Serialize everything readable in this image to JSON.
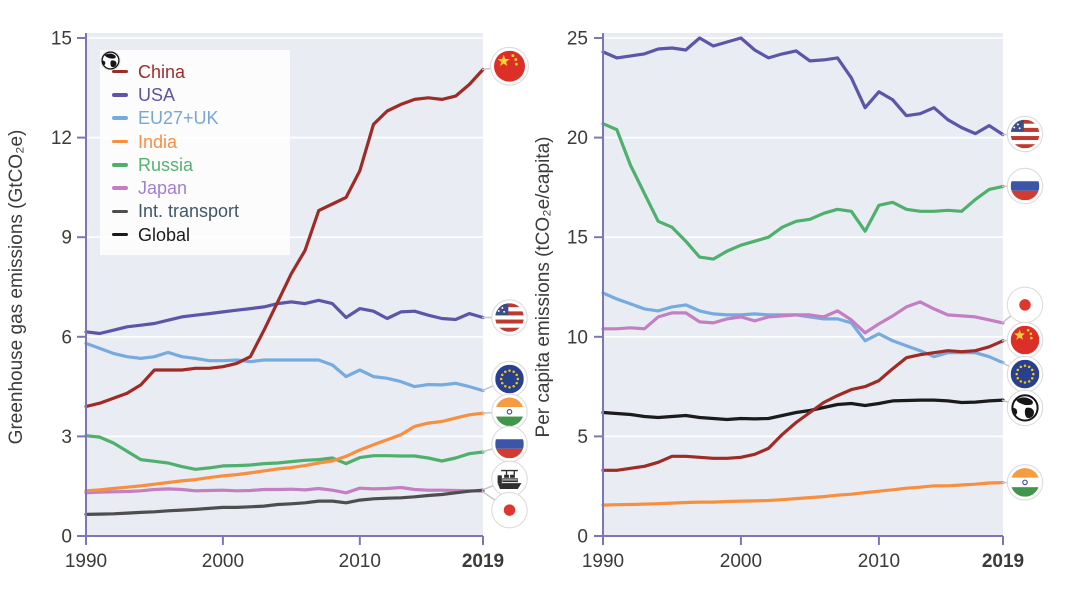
{
  "colors": {
    "axis": "#7e75b8",
    "plot_bg": "#e9edf3",
    "grid": "#ffffff",
    "tick_text": "#3b3b3b",
    "connector": "#c6c6ca",
    "marker_ring": "#dcdcde"
  },
  "years": [
    1990,
    1991,
    1992,
    1993,
    1994,
    1995,
    1996,
    1997,
    1998,
    1999,
    2000,
    2001,
    2002,
    2003,
    2004,
    2005,
    2006,
    2007,
    2008,
    2009,
    2010,
    2011,
    2012,
    2013,
    2014,
    2015,
    2016,
    2017,
    2018,
    2019
  ],
  "legend": {
    "items": [
      {
        "label": "China",
        "flag": "china",
        "color": "#9e2b26",
        "text_color": "#9e2c2c"
      },
      {
        "label": "USA",
        "flag": "usa",
        "color": "#5d55a8",
        "text_color": "#5b54a7"
      },
      {
        "label": "EU27+UK",
        "flag": "eu",
        "color": "#76abdf",
        "text_color": "#76a7d6"
      },
      {
        "label": "India",
        "flag": "india",
        "color": "#f78f3f",
        "text_color": "#f78f44"
      },
      {
        "label": "Russia",
        "flag": "russia",
        "color": "#4eb06c",
        "text_color": "#56b172"
      },
      {
        "label": "Japan",
        "flag": "japan",
        "color": "#c47ec2",
        "text_color": "#a37fd2"
      },
      {
        "label": "Int. transport",
        "flag": "ship",
        "color": "#4e4e4e",
        "text_color": "#3f5866"
      },
      {
        "label": "Global",
        "flag": "globe",
        "color": "#1b1b1b",
        "text_color": "#1b1b1b"
      }
    ]
  },
  "chart_data": [
    {
      "type": "line",
      "title": "",
      "ylabel": "Greenhouse gas emissions (GtCO₂e)",
      "xlabel": "",
      "ylim": [
        0,
        15
      ],
      "yticks": [
        0,
        3,
        6,
        9,
        12,
        15
      ],
      "xticks": [
        1990,
        2000,
        2010,
        2019
      ],
      "xtick_bold": "2019",
      "grid": true,
      "legend_position": "upper-left",
      "x_range": [
        1990,
        2019
      ],
      "series": [
        {
          "name": "Japan",
          "flag": "japan",
          "color": "#c47ec2",
          "values": [
            1.3,
            1.32,
            1.33,
            1.34,
            1.36,
            1.4,
            1.42,
            1.4,
            1.36,
            1.37,
            1.38,
            1.36,
            1.37,
            1.4,
            1.4,
            1.41,
            1.39,
            1.43,
            1.38,
            1.3,
            1.44,
            1.42,
            1.43,
            1.46,
            1.4,
            1.38,
            1.38,
            1.37,
            1.36,
            1.35
          ]
        },
        {
          "name": "Int. transport",
          "flag": "ship",
          "color": "#4e4e4e",
          "values": [
            0.65,
            0.66,
            0.67,
            0.69,
            0.71,
            0.73,
            0.76,
            0.78,
            0.8,
            0.83,
            0.86,
            0.86,
            0.88,
            0.9,
            0.95,
            0.97,
            1.0,
            1.05,
            1.05,
            1.0,
            1.08,
            1.12,
            1.14,
            1.15,
            1.18,
            1.22,
            1.25,
            1.3,
            1.35,
            1.38
          ]
        },
        {
          "name": "Russia",
          "flag": "russia",
          "color": "#4eb06c",
          "values": [
            3.02,
            2.98,
            2.8,
            2.55,
            2.3,
            2.25,
            2.2,
            2.09,
            2.01,
            2.05,
            2.11,
            2.12,
            2.14,
            2.18,
            2.2,
            2.24,
            2.28,
            2.3,
            2.35,
            2.18,
            2.36,
            2.42,
            2.42,
            2.41,
            2.41,
            2.35,
            2.26,
            2.35,
            2.48,
            2.53
          ]
        },
        {
          "name": "India",
          "flag": "india",
          "color": "#f78f3f",
          "values": [
            1.36,
            1.39,
            1.43,
            1.47,
            1.51,
            1.56,
            1.61,
            1.66,
            1.7,
            1.76,
            1.81,
            1.85,
            1.9,
            1.96,
            2.02,
            2.06,
            2.12,
            2.2,
            2.26,
            2.4,
            2.59,
            2.75,
            2.9,
            3.05,
            3.3,
            3.4,
            3.45,
            3.55,
            3.65,
            3.7
          ]
        },
        {
          "name": "EU27+UK",
          "flag": "eu",
          "color": "#76abdf",
          "values": [
            5.8,
            5.65,
            5.5,
            5.4,
            5.35,
            5.4,
            5.53,
            5.4,
            5.35,
            5.28,
            5.28,
            5.3,
            5.25,
            5.3,
            5.3,
            5.3,
            5.3,
            5.3,
            5.15,
            4.8,
            5.0,
            4.8,
            4.75,
            4.65,
            4.5,
            4.56,
            4.55,
            4.6,
            4.5,
            4.38
          ]
        },
        {
          "name": "USA",
          "flag": "usa",
          "color": "#5d55a8",
          "values": [
            6.15,
            6.1,
            6.2,
            6.3,
            6.35,
            6.4,
            6.5,
            6.6,
            6.65,
            6.7,
            6.75,
            6.8,
            6.85,
            6.9,
            7.0,
            7.05,
            7.0,
            7.1,
            7.0,
            6.58,
            6.85,
            6.77,
            6.55,
            6.75,
            6.77,
            6.65,
            6.55,
            6.52,
            6.7,
            6.58
          ]
        },
        {
          "name": "China",
          "flag": "china",
          "color": "#9e2b26",
          "values": [
            3.9,
            4.0,
            4.15,
            4.3,
            4.55,
            5.0,
            5.0,
            5.0,
            5.05,
            5.05,
            5.1,
            5.2,
            5.4,
            6.2,
            7.05,
            7.9,
            8.6,
            9.8,
            10.0,
            10.2,
            11.0,
            12.4,
            12.8,
            13.0,
            13.15,
            13.2,
            13.15,
            13.25,
            13.6,
            14.05
          ]
        }
      ],
      "end_markers": [
        {
          "series": "China",
          "flag": "china",
          "at_value": 14.15,
          "size": 15.5
        },
        {
          "series": "USA",
          "flag": "usa",
          "at_value": 6.58,
          "size": 14.3
        },
        {
          "series": "EU27+UK",
          "flag": "eu",
          "at_value": 4.73,
          "size": 14.3
        },
        {
          "series": "India",
          "flag": "india",
          "at_value": 3.74,
          "size": 14.3
        },
        {
          "series": "Russia",
          "flag": "russia",
          "at_value": 2.77,
          "size": 14.3
        },
        {
          "series": "Int. transport",
          "flag": "ship",
          "at_value": 1.72,
          "size": 14.3
        },
        {
          "series": "Japan",
          "flag": "japan",
          "at_value": 0.78,
          "size": 14.3
        }
      ]
    },
    {
      "type": "line",
      "title": "",
      "ylabel": "Per capita emissions (tCO₂e/capita)",
      "xlabel": "",
      "ylim": [
        0,
        25
      ],
      "yticks": [
        0,
        5,
        10,
        15,
        20,
        25
      ],
      "xticks": [
        1990,
        2000,
        2010,
        2019
      ],
      "xtick_bold": "2019",
      "grid": true,
      "x_range": [
        1990,
        2019
      ],
      "series": [
        {
          "name": "India",
          "flag": "india",
          "color": "#f78f3f",
          "values": [
            1.55,
            1.57,
            1.58,
            1.6,
            1.62,
            1.65,
            1.68,
            1.7,
            1.7,
            1.73,
            1.75,
            1.76,
            1.78,
            1.82,
            1.88,
            1.93,
            1.98,
            2.05,
            2.1,
            2.18,
            2.25,
            2.32,
            2.4,
            2.45,
            2.52,
            2.52,
            2.56,
            2.6,
            2.66,
            2.68
          ]
        },
        {
          "name": "Global",
          "flag": "globe",
          "color": "#1b1b1b",
          "values": [
            6.2,
            6.15,
            6.1,
            6.0,
            5.95,
            6.0,
            6.05,
            5.95,
            5.9,
            5.85,
            5.9,
            5.88,
            5.9,
            6.05,
            6.2,
            6.3,
            6.45,
            6.6,
            6.65,
            6.55,
            6.65,
            6.78,
            6.8,
            6.82,
            6.82,
            6.78,
            6.7,
            6.72,
            6.78,
            6.82
          ]
        },
        {
          "name": "EU27+UK",
          "flag": "eu",
          "color": "#76abdf",
          "values": [
            12.2,
            11.9,
            11.65,
            11.4,
            11.3,
            11.5,
            11.6,
            11.3,
            11.15,
            11.1,
            11.1,
            11.15,
            11.1,
            11.1,
            11.1,
            11.0,
            10.9,
            10.9,
            10.7,
            9.8,
            10.15,
            9.8,
            9.55,
            9.3,
            9.0,
            9.2,
            9.2,
            9.2,
            9.0,
            8.7
          ]
        },
        {
          "name": "Japan",
          "flag": "japan",
          "color": "#c47ec2",
          "values": [
            10.4,
            10.4,
            10.45,
            10.4,
            11.0,
            11.2,
            11.2,
            10.75,
            10.7,
            10.9,
            11.0,
            10.8,
            11.0,
            11.05,
            11.1,
            11.1,
            11.0,
            11.3,
            10.85,
            10.2,
            10.65,
            11.05,
            11.5,
            11.75,
            11.4,
            11.1,
            11.05,
            11.0,
            10.85,
            10.7
          ]
        },
        {
          "name": "China",
          "flag": "china",
          "color": "#9e2b26",
          "values": [
            3.3,
            3.3,
            3.4,
            3.5,
            3.7,
            4.0,
            4.0,
            3.95,
            3.9,
            3.9,
            3.95,
            4.1,
            4.4,
            5.1,
            5.7,
            6.2,
            6.7,
            7.05,
            7.35,
            7.5,
            7.8,
            8.4,
            8.95,
            9.1,
            9.2,
            9.3,
            9.25,
            9.3,
            9.5,
            9.8
          ]
        },
        {
          "name": "Russia",
          "flag": "russia",
          "color": "#4eb06c",
          "values": [
            20.7,
            20.4,
            18.6,
            17.2,
            15.8,
            15.5,
            14.8,
            14.0,
            13.9,
            14.3,
            14.6,
            14.8,
            15.0,
            15.5,
            15.8,
            15.9,
            16.2,
            16.4,
            16.3,
            15.3,
            16.6,
            16.75,
            16.4,
            16.3,
            16.3,
            16.35,
            16.3,
            16.9,
            17.4,
            17.55
          ]
        },
        {
          "name": "USA",
          "flag": "usa",
          "color": "#5d55a8",
          "values": [
            24.3,
            24.0,
            24.1,
            24.2,
            24.45,
            24.5,
            24.4,
            25.0,
            24.6,
            24.8,
            25.0,
            24.4,
            24.0,
            24.2,
            24.35,
            23.85,
            23.9,
            24.0,
            23.0,
            21.5,
            22.3,
            21.9,
            21.1,
            21.2,
            21.5,
            20.9,
            20.5,
            20.2,
            20.6,
            20.15
          ]
        }
      ],
      "end_markers": [
        {
          "series": "USA",
          "flag": "usa",
          "at_value": 20.18,
          "size": 14.3
        },
        {
          "series": "Russia",
          "flag": "russia",
          "at_value": 17.57,
          "size": 14.3
        },
        {
          "series": "Japan",
          "flag": "japan",
          "at_value": 11.6,
          "size": 14.3
        },
        {
          "series": "China",
          "flag": "china",
          "at_value": 9.84,
          "size": 14.3
        },
        {
          "series": "EU27+UK",
          "flag": "eu",
          "at_value": 8.13,
          "size": 14.3
        },
        {
          "series": "Global",
          "flag": "globe",
          "at_value": 6.43,
          "size": 14.3
        },
        {
          "series": "India",
          "flag": "india",
          "at_value": 2.69,
          "size": 14.3
        }
      ]
    }
  ]
}
